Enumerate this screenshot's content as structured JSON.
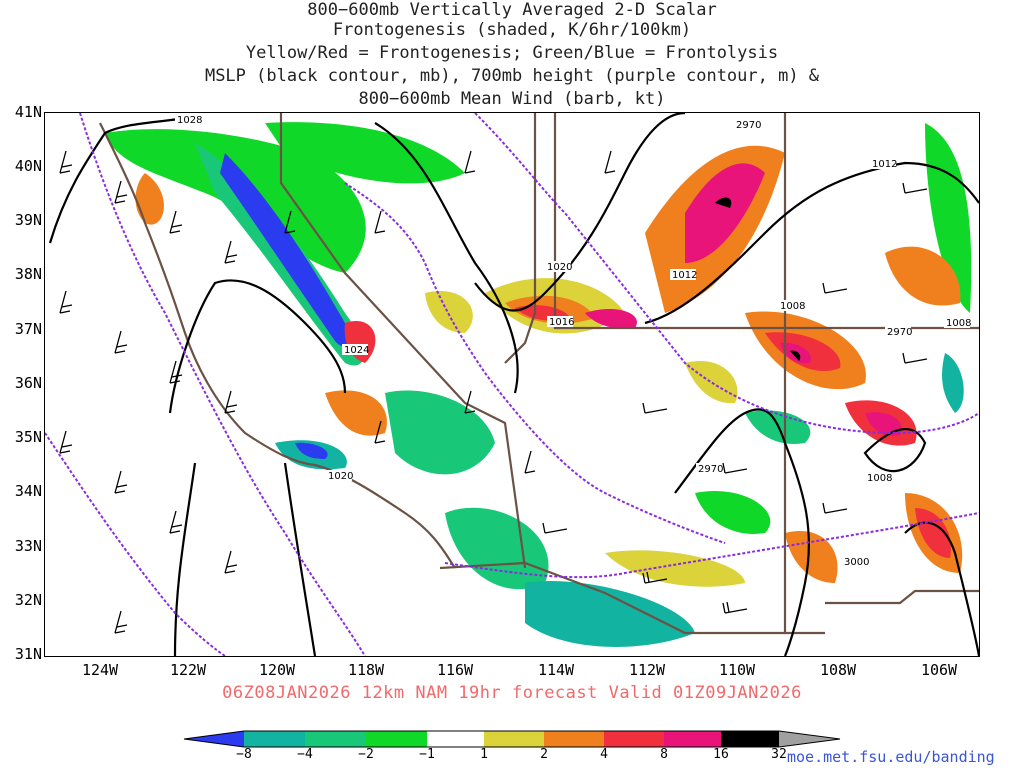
{
  "title_lines": [
    "800−600mb Vertically Averaged 2-D Scalar",
    "Frontogenesis (shaded, K/6hr/100km)",
    "Yellow/Red = Frontogenesis;  Green/Blue = Frontolysis",
    "MSLP (black contour, mb), 700mb height (purple contour, m) &",
    "800−600mb Mean Wind (barb, kt)"
  ],
  "forecast_label": "06Z08JAN2026 12km NAM 19hr forecast Valid 01Z09JAN2026",
  "credit": "moe.met.fsu.edu/banding",
  "lat_labels": [
    "41N",
    "40N",
    "39N",
    "38N",
    "37N",
    "36N",
    "35N",
    "34N",
    "33N",
    "32N",
    "31N"
  ],
  "lon_labels": [
    "124W",
    "122W",
    "120W",
    "118W",
    "116W",
    "114W",
    "112W",
    "110W",
    "108W",
    "106W"
  ],
  "colorbar": {
    "labels": [
      "−8",
      "−4",
      "−2",
      "−1",
      "1",
      "2",
      "4",
      "8",
      "16",
      "32"
    ],
    "colors": [
      "#2a3bf0",
      "#12b3a0",
      "#18c878",
      "#10d828",
      "#ffffff",
      "#dcd23a",
      "#f0801e",
      "#f0303c",
      "#e8147a",
      "#000000",
      "#a0a0a0"
    ]
  },
  "map": {
    "mslp_labels": [
      "1028",
      "1024",
      "1020",
      "1020",
      "1016",
      "1012",
      "1012",
      "1008",
      "1008",
      "1008"
    ],
    "height_labels": [
      "2970",
      "2970",
      "2970",
      "3000"
    ]
  }
}
